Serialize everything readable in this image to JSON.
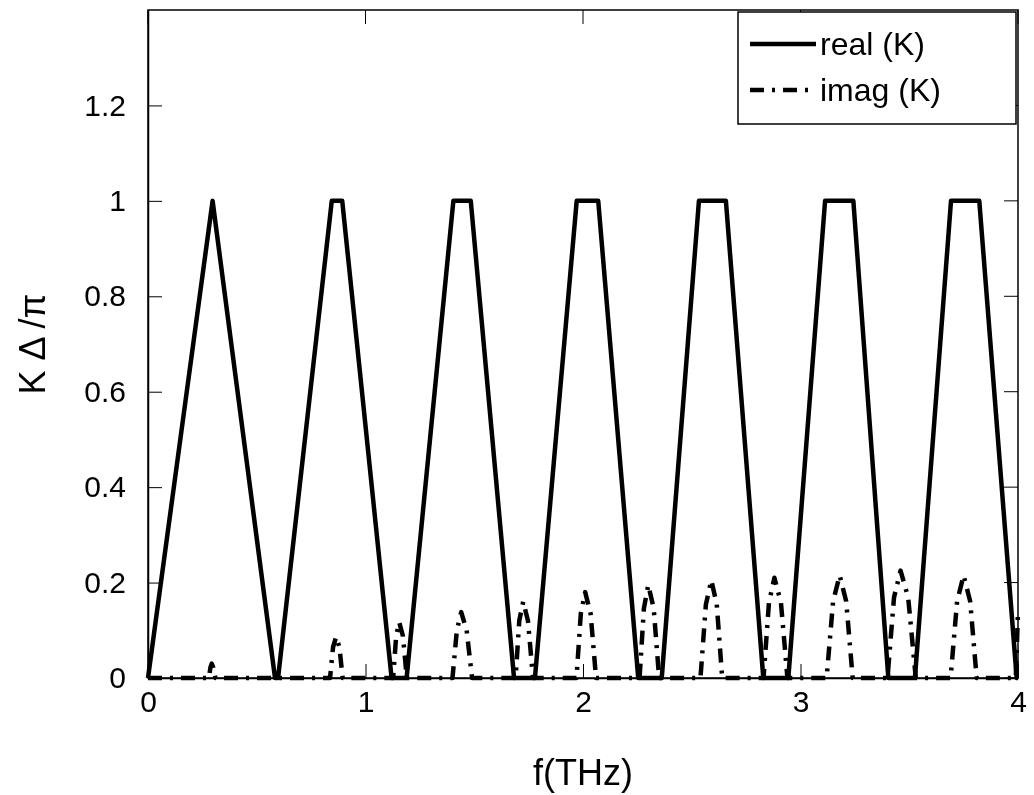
{
  "chart_data": {
    "type": "line",
    "xlabel": "f(THz)",
    "ylabel": "K Δ /π",
    "xlim": [
      0,
      4
    ],
    "xticks": [
      0,
      1,
      2,
      3,
      4
    ],
    "ylim": [
      0,
      1.4
    ],
    "yticks": [
      0,
      0.2,
      0.4,
      0.6,
      0.8,
      1,
      1.2
    ],
    "grid": false,
    "legend": "top right",
    "marker": "none",
    "series": [
      {
        "name": "real (K)",
        "color": "#000000",
        "line_style": "solid",
        "x": [
          0,
          0.297,
          0.584,
          0.598,
          0.845,
          0.893,
          1.12,
          1.189,
          1.404,
          1.484,
          1.683,
          1.779,
          1.971,
          2.07,
          2.254,
          2.362,
          2.533,
          2.657,
          2.829,
          2.944,
          3.113,
          3.243,
          3.404,
          3.526,
          3.692,
          3.822,
          3.994,
          4
        ],
        "values": [
          0,
          1,
          0,
          0,
          1,
          1,
          0,
          0,
          1,
          1,
          0,
          0,
          1,
          1,
          0,
          0,
          1,
          1,
          0,
          0,
          1,
          1,
          0,
          0,
          1,
          1,
          0,
          0
        ]
      },
      {
        "name": "imag (K)",
        "color": "#000000",
        "line_style": "dashdot",
        "x": [
          0,
          0.28,
          0.287,
          0.293,
          0.3,
          0.31,
          0.837,
          0.851,
          0.865,
          0.88,
          0.895,
          1.127,
          1.141,
          1.155,
          1.172,
          1.19,
          1.4,
          1.42,
          1.44,
          1.465,
          1.49,
          1.69,
          1.707,
          1.725,
          1.747,
          1.77,
          1.97,
          1.99,
          2.01,
          2.035,
          2.06,
          2.26,
          2.28,
          2.3,
          2.325,
          2.35,
          2.54,
          2.565,
          2.59,
          2.615,
          2.64,
          2.83,
          2.855,
          2.88,
          2.91,
          2.94,
          3.12,
          3.15,
          3.18,
          3.21,
          3.24,
          3.4,
          3.43,
          3.46,
          3.495,
          3.53,
          3.69,
          3.72,
          3.75,
          3.78,
          3.81,
          3.99,
          4
        ],
        "values": [
          0,
          0,
          0.022,
          0.03,
          0.022,
          0,
          0,
          0.065,
          0.086,
          0.065,
          0,
          0,
          0.088,
          0.117,
          0.088,
          0,
          0,
          0.1,
          0.138,
          0.1,
          0,
          0,
          0.12,
          0.16,
          0.12,
          0,
          0,
          0.135,
          0.18,
          0.135,
          0,
          0,
          0.146,
          0.195,
          0.146,
          0,
          0,
          0.154,
          0.205,
          0.154,
          0,
          0,
          0.158,
          0.21,
          0.158,
          0,
          0,
          0.161,
          0.215,
          0.161,
          0,
          0,
          0.169,
          0.225,
          0.169,
          0,
          0,
          0.161,
          0.215,
          0.161,
          0,
          0,
          0.14
        ]
      }
    ]
  }
}
